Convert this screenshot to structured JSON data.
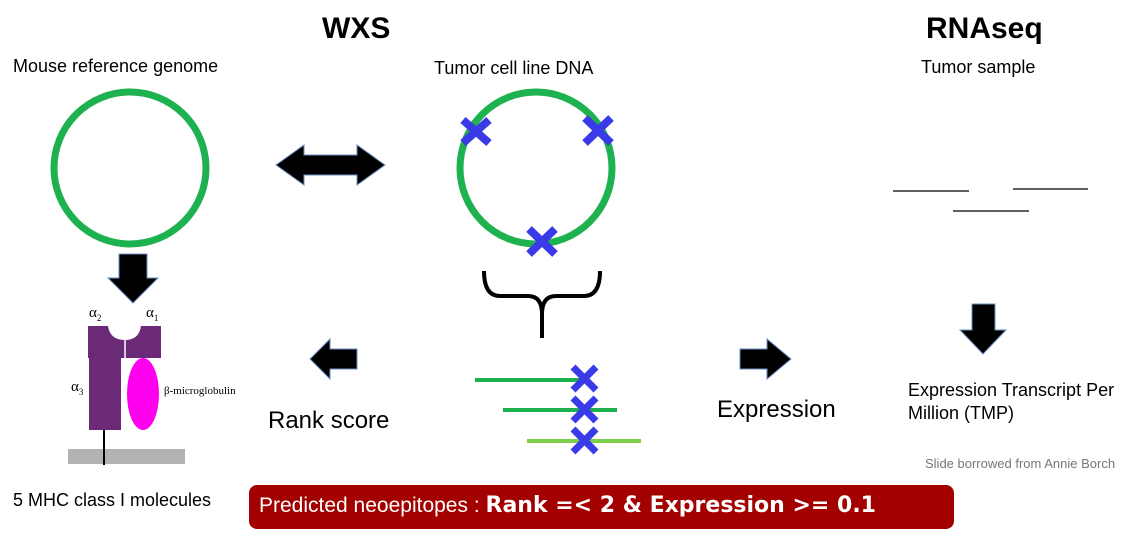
{
  "headings": {
    "wxs": "WXS",
    "rnaseq": "RNAseq"
  },
  "labels": {
    "mouse_reference_genome": "Mouse reference genome",
    "tumor_cell_line_dna": "Tumor cell line DNA",
    "tumor_sample": "Tumor sample",
    "rank_score": "Rank score",
    "expression": "Expression",
    "expression_tmp_line1": "Expression Transcript Per",
    "expression_tmp_line2": "Million (TMP)",
    "mhc_molecules": "5 MHC class I molecules",
    "credit": "Slide borrowed  from Annie Borch"
  },
  "mhc_diagram": {
    "alpha1": "α",
    "alpha1_sub": "1",
    "alpha2": "α",
    "alpha2_sub": "2",
    "alpha3": "α",
    "alpha3_sub": "3",
    "beta": "β-microglobulin"
  },
  "banner": {
    "prefix": "Predicted neoepitopes : ",
    "criteria": "Rank =< 2 & Expression >= 0.1"
  },
  "colors": {
    "genome_green": "#1eb14f",
    "light_green": "#7dcf4c",
    "mutation_blue": "#3a3ae8",
    "mhc_purple": "#6b2a78",
    "beta_magenta": "#ff00ee",
    "membrane_gray": "#b3b3b3",
    "banner_red": "#a30000",
    "arrow_black": "#000000"
  }
}
